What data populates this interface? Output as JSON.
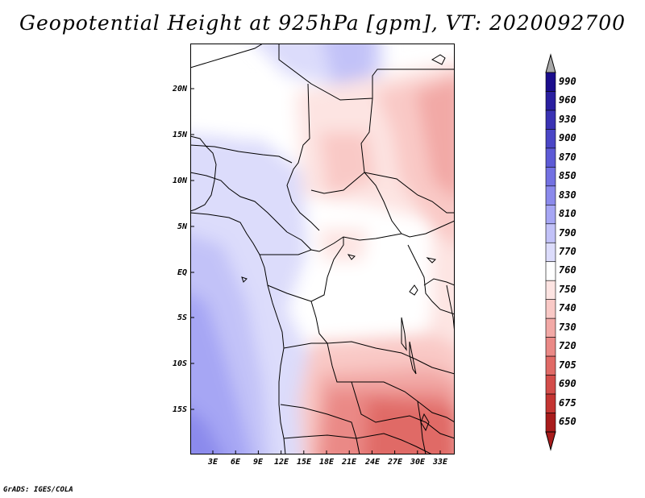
{
  "title": "Geopotential Height at 925hPa [gpm], VT: 2020092700",
  "axes": {
    "lat_ticks": [
      "20N",
      "15N",
      "10N",
      "5N",
      "EQ",
      "5S",
      "10S",
      "15S"
    ],
    "lon_ticks": [
      "3E",
      "6E",
      "9E",
      "12E",
      "15E",
      "18E",
      "21E",
      "24E",
      "27E",
      "30E",
      "33E"
    ]
  },
  "colorbar": {
    "levels": [
      "990",
      "960",
      "930",
      "900",
      "870",
      "850",
      "830",
      "810",
      "790",
      "770",
      "760",
      "750",
      "740",
      "730",
      "720",
      "705",
      "690",
      "675",
      "650"
    ],
    "colors": [
      "#1b0d8c",
      "#2a1fa0",
      "#3a32b4",
      "#4a46c6",
      "#5d5ad6",
      "#7371e2",
      "#8b8aec",
      "#a6a6f4",
      "#c2c2f8",
      "#dcdcfb",
      "#ffffff",
      "#fde4e2",
      "#f9c9c6",
      "#f2a9a6",
      "#ea8986",
      "#e06a66",
      "#d34d4a",
      "#c43532",
      "#a81c1c"
    ]
  },
  "footer": "GrADS: IGES/COLA"
}
